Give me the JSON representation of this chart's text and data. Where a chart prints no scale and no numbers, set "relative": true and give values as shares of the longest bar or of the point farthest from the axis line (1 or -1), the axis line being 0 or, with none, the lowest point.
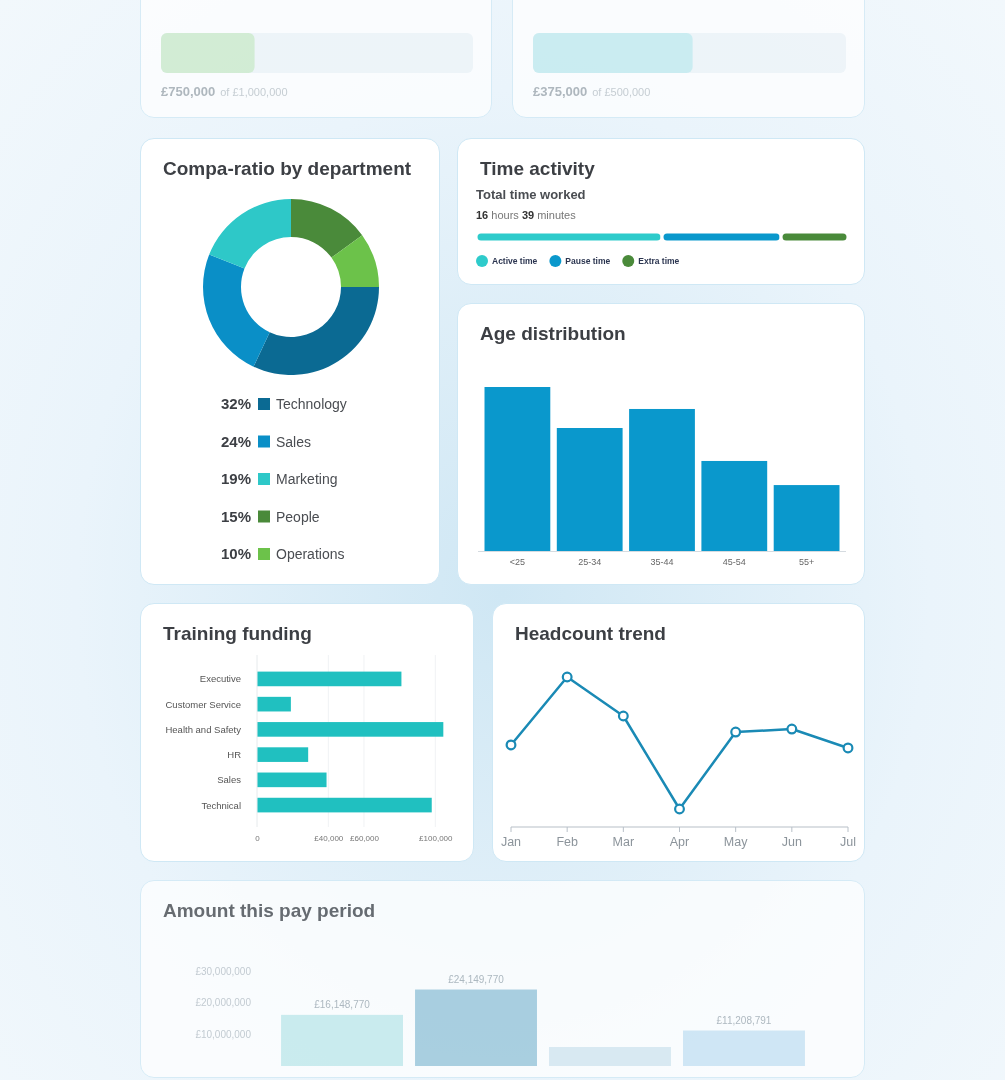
{
  "chart_data": [
    {
      "type": "other",
      "annotations": [
        "£750,000",
        "of £1,000,000"
      ]
    },
    {
      "type": "other",
      "annotations": [
        "£375,000",
        "of £500,000"
      ]
    },
    {
      "type": "donut",
      "title": "Compa-ratio by department",
      "categories": [
        "Technology",
        "Sales",
        "Marketing",
        "People",
        "Operations"
      ],
      "values": [
        32,
        24,
        19,
        15,
        10
      ],
      "colors": [
        "#0b6a93",
        "#0a8fc7",
        "#2ec8c8",
        "#4a8a3a",
        "#6cc24a"
      ],
      "value_labels": [
        "32%",
        "24%",
        "19%",
        "15%",
        "10%"
      ],
      "legend": "bottom"
    },
    {
      "type": "bar",
      "orientation": "horizontal",
      "stacked": true,
      "relative": true,
      "title": "Time activity",
      "subtitle": "Total time worked",
      "annotations": [
        "16 hours 39 minutes"
      ],
      "categories": [
        null
      ],
      "legend": "bottom",
      "series": [
        {
          "name": "Active time",
          "color": "#2ecbcb",
          "values": [
            0.5
          ]
        },
        {
          "name": "Pause time",
          "color": "#0a98cc",
          "values": [
            0.32
          ]
        },
        {
          "name": "Extra time",
          "color": "#4a8a3a",
          "values": [
            0.18
          ]
        }
      ]
    },
    {
      "type": "bar",
      "relative": true,
      "title": "Age distribution",
      "categories": [
        "<25",
        "25-34",
        "35-44",
        "45-54",
        "55+"
      ],
      "values": [
        1,
        0.75,
        0.866,
        0.549,
        0.402
      ],
      "color": "#0a98cc"
    },
    {
      "type": "bar",
      "orientation": "horizontal",
      "title": "Training funding",
      "categories": [
        "Executive",
        "Customer Service",
        "Health and Safety",
        "HR",
        "Sales",
        "Technical"
      ],
      "values": [
        81000,
        19000,
        104500,
        28700,
        39000,
        98000
      ],
      "color": "#20c0c0",
      "xlim": [
        0,
        106000
      ],
      "xticks": [
        0,
        {
          "value": 40000,
          "label": "£40,000"
        },
        {
          "value": 60000,
          "label": "£60,000"
        },
        {
          "value": 100000,
          "label": "£100,000"
        }
      ],
      "grid": "x"
    },
    {
      "type": "line",
      "relative": true,
      "title": "Headcount trend",
      "categories": [
        "Jan",
        "Feb",
        "Mar",
        "Apr",
        "May",
        "Jun",
        "Jul"
      ],
      "values": [
        0.547,
        1,
        0.74,
        0.12,
        0.633,
        0.653,
        0.527
      ],
      "color": "#1a8ab5",
      "marker": "circle"
    },
    {
      "type": "bar",
      "title": "Amount this pay period",
      "categories": [
        null,
        null,
        null,
        null
      ],
      "values": [
        16148770,
        24149770,
        6000000,
        11208791
      ],
      "colors": [
        "#bfe9ea",
        "#94c3d8",
        "#d3e6f0",
        "#c6e2f3"
      ],
      "ylim": [
        0,
        30000000
      ],
      "yticks": [
        {
          "value": 10000000,
          "label": "£10,000,000"
        },
        {
          "value": 20000000,
          "label": "£20,000,000"
        },
        {
          "value": 30000000,
          "label": "£30,000,000"
        }
      ],
      "value_labels": [
        "£16,148,770",
        "£24,149,770",
        null,
        "£11,208,791"
      ]
    }
  ]
}
